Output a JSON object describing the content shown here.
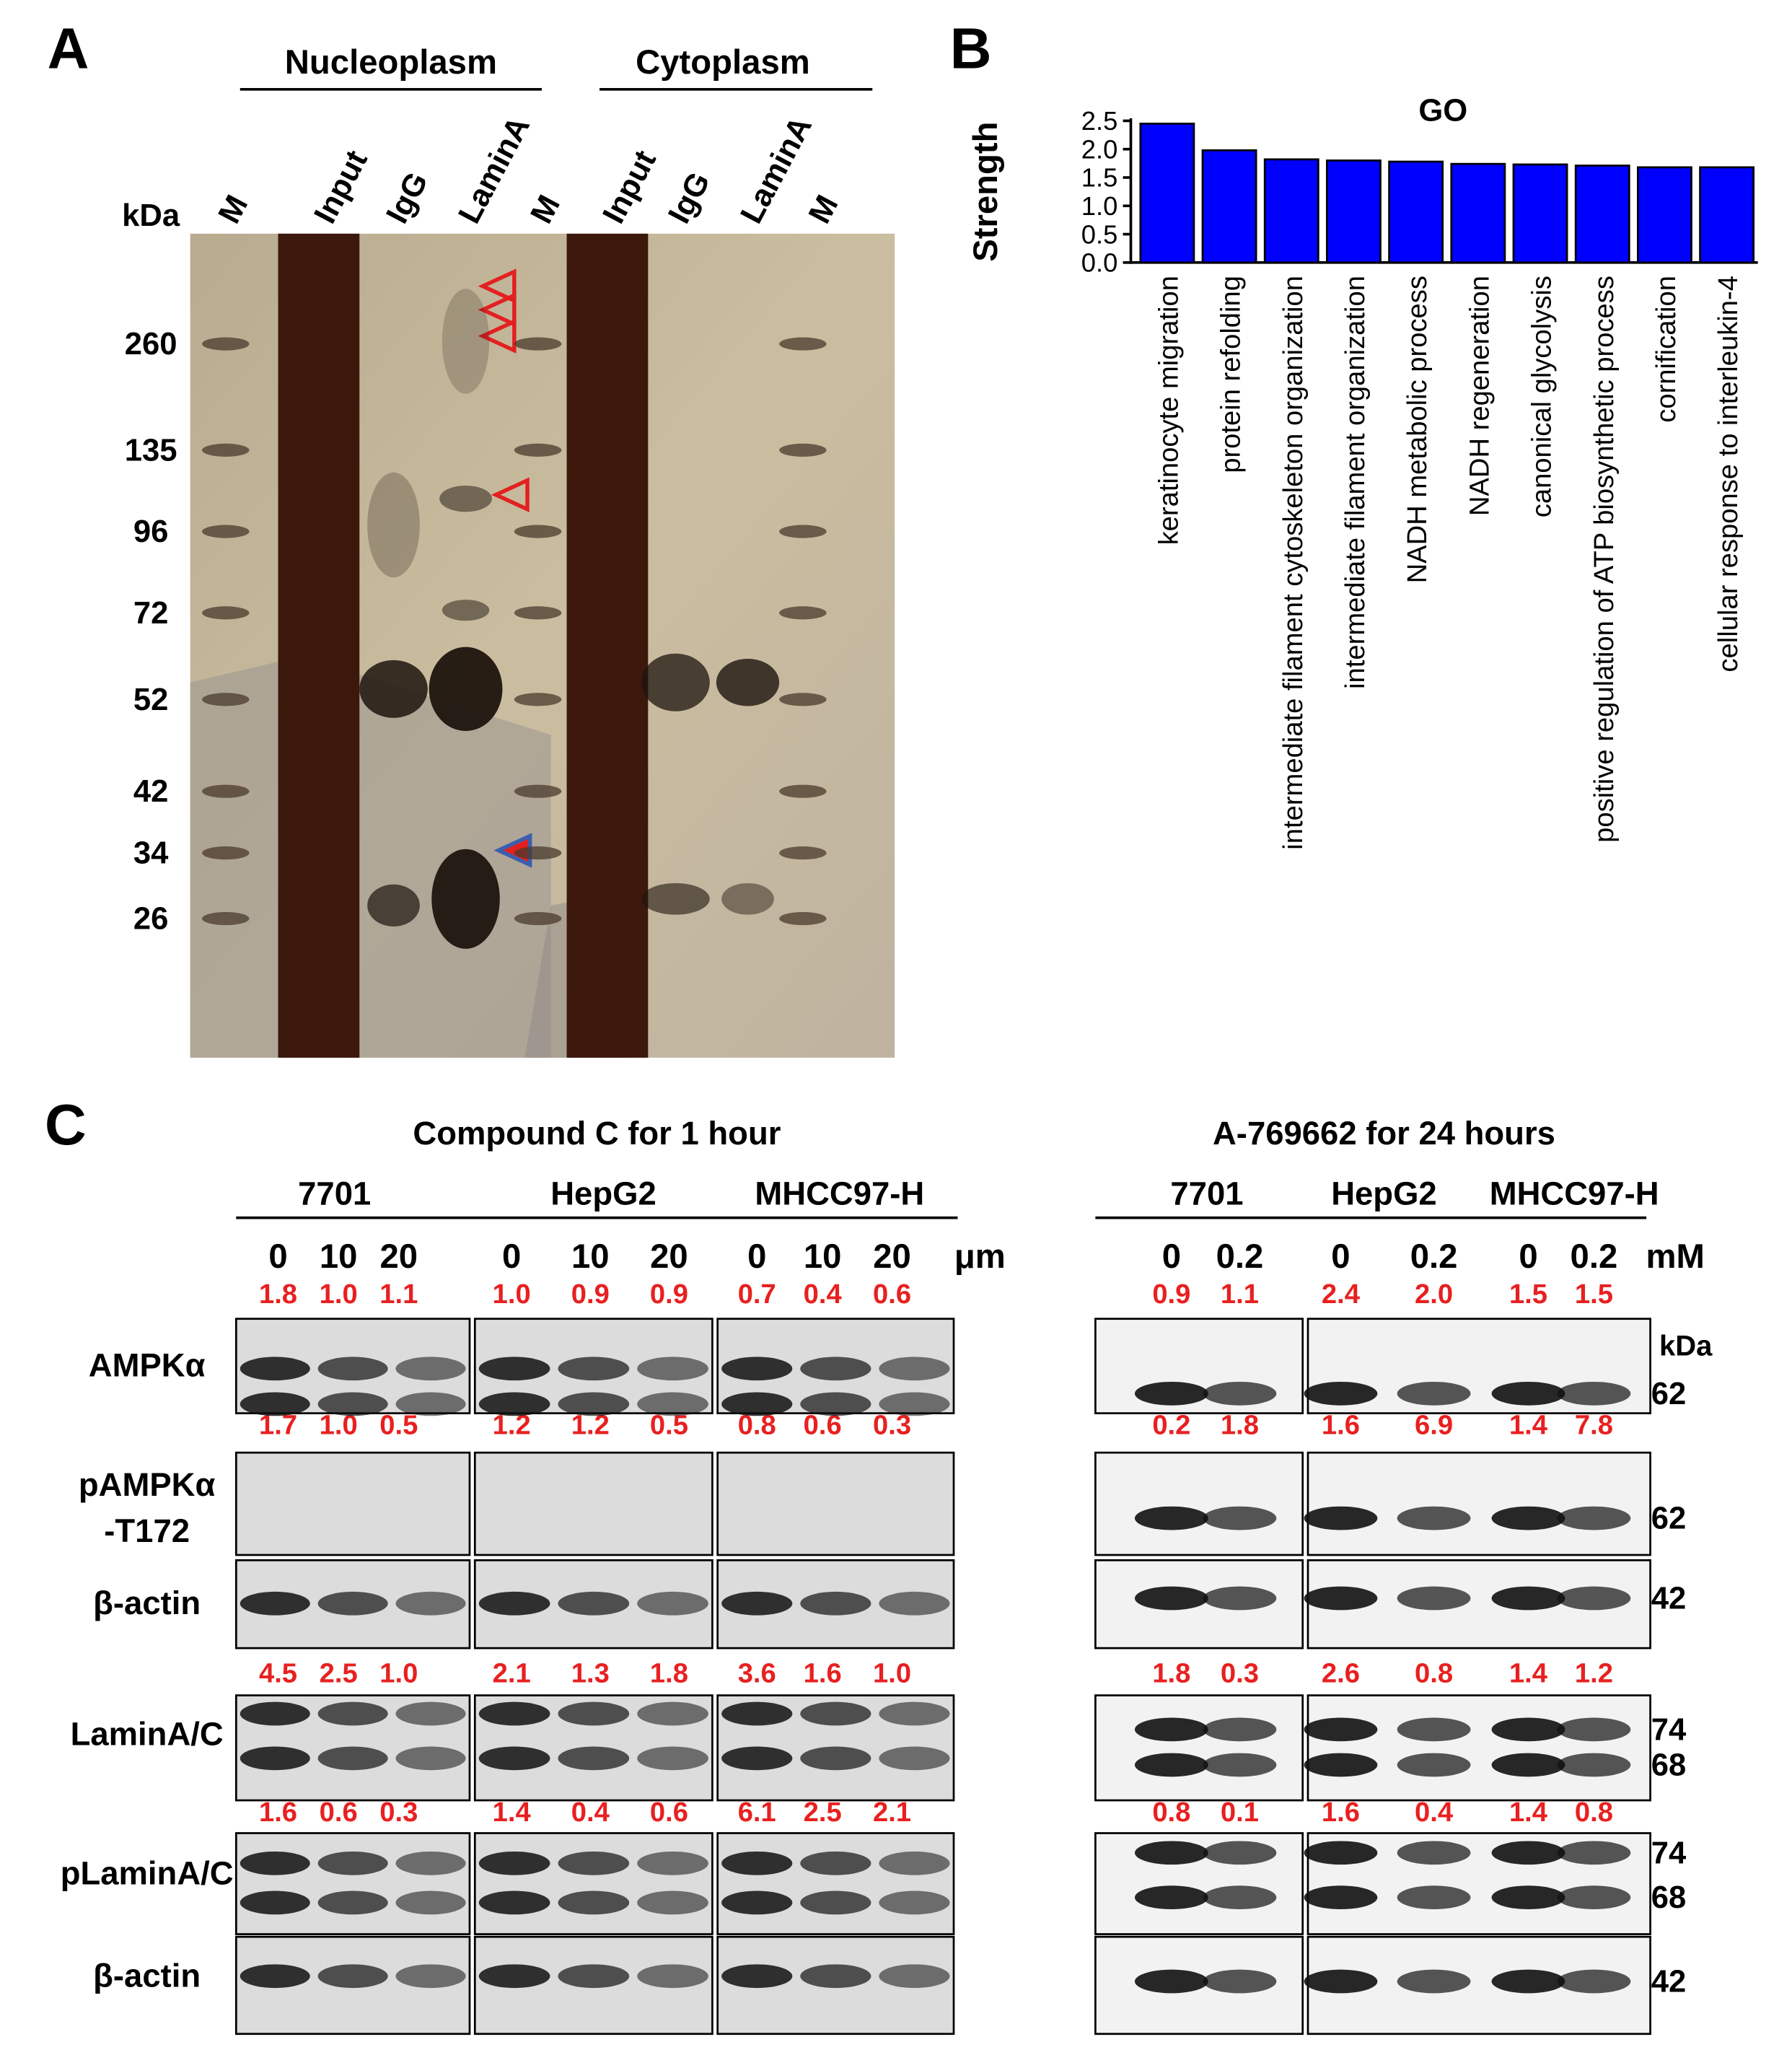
{
  "panel_a": {
    "letter": "A",
    "groups": [
      "Nucleoplasm",
      "Cytoplasm"
    ],
    "lanes": [
      "M",
      "Input",
      "IgG",
      "LaminA",
      "M",
      "Input",
      "IgG",
      "LaminA",
      "M"
    ],
    "unit": "kDa",
    "markers": [
      "260",
      "135",
      "96",
      "72",
      "52",
      "42",
      "34",
      "26"
    ]
  },
  "chart_data": {
    "type": "bar",
    "panel": "B",
    "title": "GO",
    "y_label": "Strength",
    "categories": [
      "keratinocyte migration",
      "protein refolding",
      "intermediate filament cytoskeleton organization",
      "intermediate filament organization",
      "NADH metabolic process",
      "NADH regeneration",
      "canonical glycolysis",
      "positive regulation of ATP biosynthetic process",
      "cornification",
      "cellular response to interleukin-4"
    ],
    "values": [
      2.45,
      1.98,
      1.82,
      1.8,
      1.78,
      1.74,
      1.73,
      1.71,
      1.68,
      1.68
    ],
    "color": "#0000ff",
    "ylim": [
      0,
      2.5
    ],
    "yticks": [
      {
        "value": 0,
        "label": "0.0"
      },
      0.5,
      {
        "value": 1,
        "label": "1.0"
      },
      1.5,
      {
        "value": 2,
        "label": "2.0"
      },
      2.5
    ]
  },
  "panel_c": {
    "letter": "C",
    "treatments": [
      {
        "title": "Compound C for 1 hour",
        "cell_lines": [
          "7701",
          "HepG2",
          "MHCC97-H"
        ],
        "doses": [
          "0",
          "10",
          "20",
          "0",
          "10",
          "20",
          "0",
          "10",
          "20"
        ],
        "dose_unit": "μm",
        "quant": [
          [
            "1.8",
            "1.0",
            "1.1",
            "1.0",
            "0.9",
            "0.9",
            "0.7",
            "0.4",
            "0.6"
          ],
          [
            "1.7",
            "1.0",
            "0.5",
            "1.2",
            "1.2",
            "0.5",
            "0.8",
            "0.6",
            "0.3"
          ],
          [
            "4.5",
            "2.5",
            "1.0",
            "2.1",
            "1.3",
            "1.8",
            "3.6",
            "1.6",
            "1.0"
          ],
          [
            "1.6",
            "0.6",
            "0.3",
            "1.4",
            "0.4",
            "0.6",
            "6.1",
            "2.5",
            "2.1"
          ]
        ]
      },
      {
        "title": "A-769662 for 24 hours",
        "cell_lines": [
          "7701",
          "HepG2",
          "MHCC97-H"
        ],
        "doses": [
          "0",
          "0.2",
          "0",
          "0.2",
          "0",
          "0.2"
        ],
        "dose_unit": "mM",
        "quant": [
          [
            "0.9",
            "1.1",
            "2.4",
            "2.0",
            "1.5",
            "1.5"
          ],
          [
            "0.2",
            "1.8",
            "1.6",
            "6.9",
            "1.4",
            "7.8"
          ],
          [
            "1.8",
            "0.3",
            "2.6",
            "0.8",
            "1.4",
            "1.2"
          ],
          [
            "0.8",
            "0.1",
            "1.6",
            "0.4",
            "1.4",
            "0.8"
          ]
        ]
      }
    ],
    "row_labels": [
      [
        "AMPKα"
      ],
      [
        "pAMPKα",
        "-T172"
      ],
      [
        "β-actin"
      ],
      [
        "LaminA/C"
      ],
      [
        "pLaminA/C"
      ],
      [
        "β-actin"
      ]
    ],
    "unit": "kDa",
    "row_kda": [
      [
        "62"
      ],
      [
        "62"
      ],
      [
        "42"
      ],
      [
        "74",
        "68"
      ],
      [
        "74",
        "68"
      ],
      [
        "42"
      ]
    ]
  }
}
